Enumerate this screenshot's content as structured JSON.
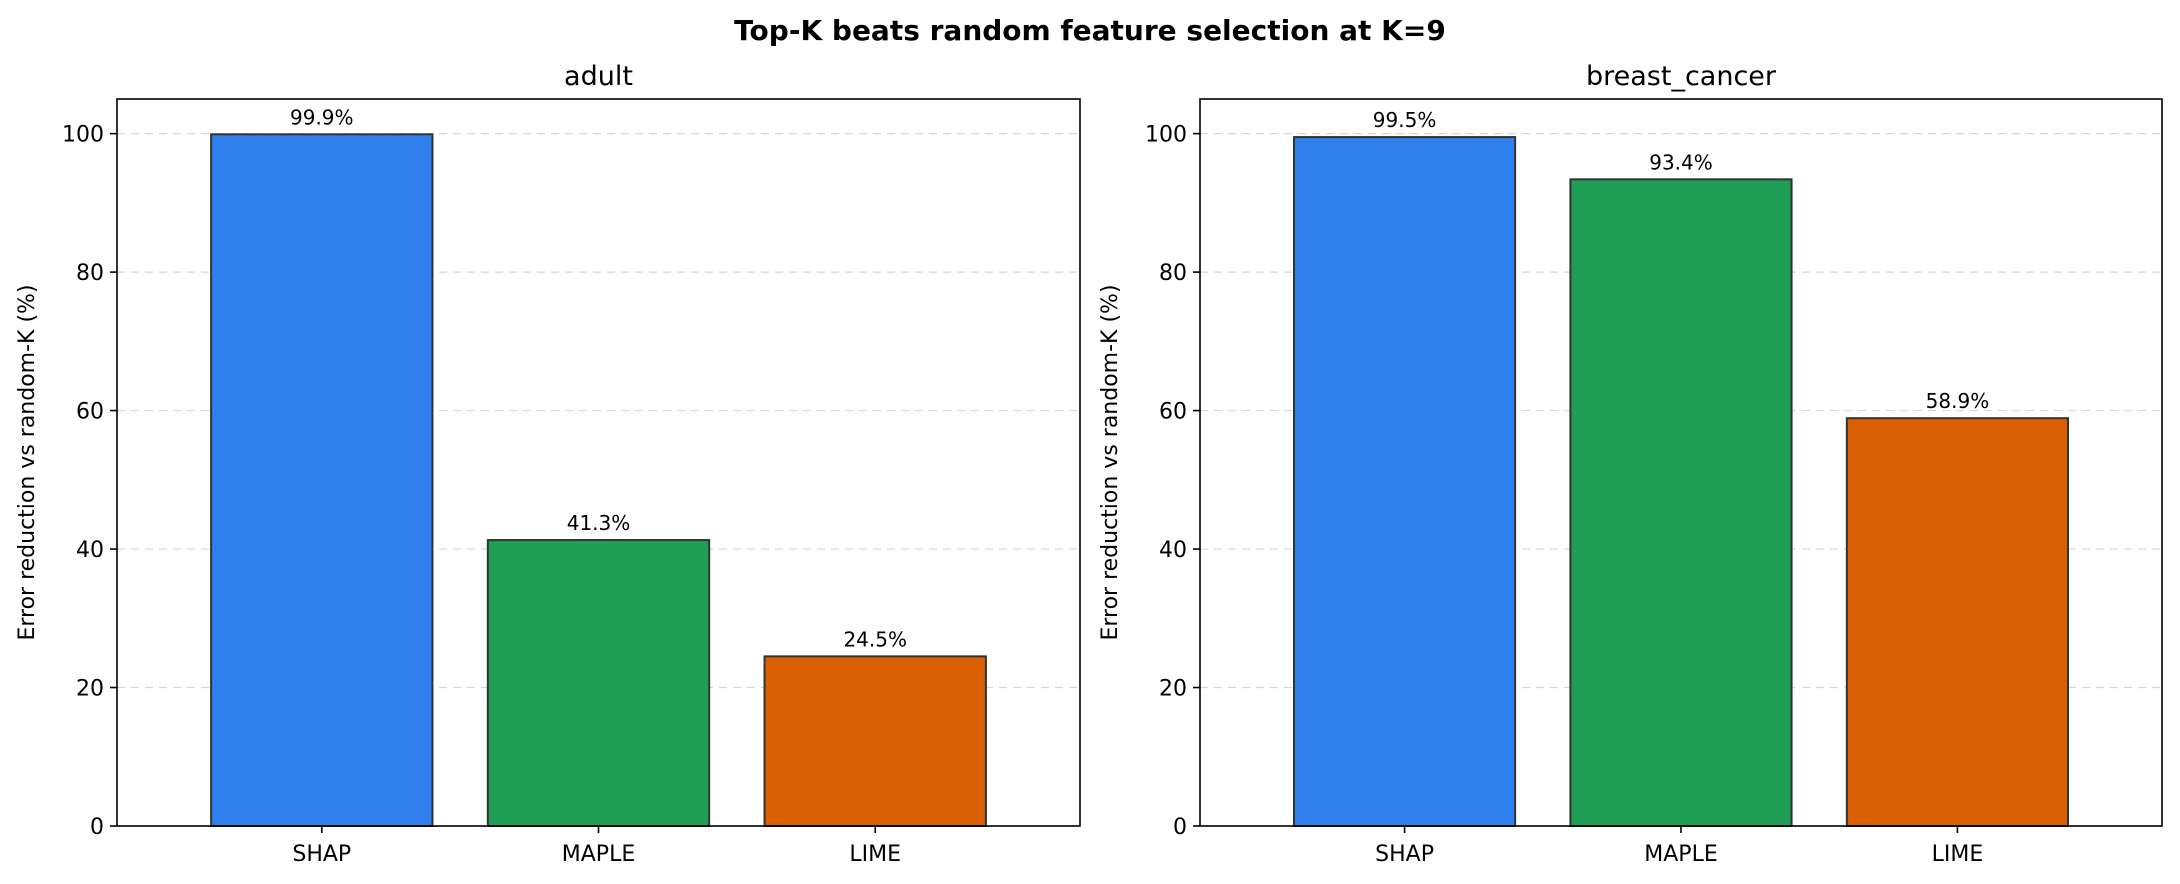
{
  "suptitle": "Top-K beats random feature selection at K=9",
  "colors": {
    "SHAP": "#2f80ed",
    "MAPLE": "#1f9e55",
    "LIME": "#d95f02"
  },
  "chart_data": [
    {
      "type": "bar",
      "title": "adult",
      "categories": [
        "SHAP",
        "MAPLE",
        "LIME"
      ],
      "values": [
        99.9,
        41.3,
        24.5
      ],
      "data_labels": [
        "99.9%",
        "41.3%",
        "24.5%"
      ],
      "xlabel": "",
      "ylabel": "Error reduction vs random-K (%)",
      "ylim": [
        0,
        105
      ],
      "yticks": [
        0,
        20,
        40,
        60,
        80,
        100
      ],
      "grid": "y dashed"
    },
    {
      "type": "bar",
      "title": "breast_cancer",
      "categories": [
        "SHAP",
        "MAPLE",
        "LIME"
      ],
      "values": [
        99.5,
        93.4,
        58.9
      ],
      "data_labels": [
        "99.5%",
        "93.4%",
        "58.9%"
      ],
      "xlabel": "",
      "ylabel": "Error reduction vs random-K (%)",
      "ylim": [
        0,
        105
      ],
      "yticks": [
        0,
        20,
        40,
        60,
        80,
        100
      ],
      "grid": "y dashed"
    }
  ]
}
